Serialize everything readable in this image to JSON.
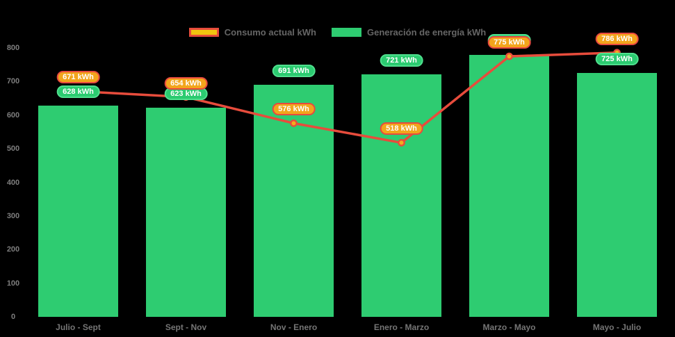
{
  "chart": {
    "background": "#000000",
    "legend": {
      "items": [
        {
          "label": "Consumo actual kWh",
          "swatch_fill": "#F1C40F",
          "swatch_border": "#E74C3C"
        },
        {
          "label": "Generación de energía kWh",
          "swatch_fill": "#2ECC71",
          "swatch_border": "#2ECC71"
        }
      ]
    }
  },
  "chart_data": {
    "type": "bar",
    "subtype": "bars-with-line-overlay",
    "title": "",
    "categories": [
      "Julio - Sept",
      "Sept - Nov",
      "Nov - Enero",
      "Enero - Marzo",
      "Marzo - Mayo",
      "Mayo - Julio"
    ],
    "series": [
      {
        "name": "Generación de energía kWh",
        "type": "bar",
        "color": "#2ECC71",
        "values": [
          628,
          623,
          691,
          721,
          780,
          725
        ],
        "hidden_label_indexes": [
          4
        ]
      },
      {
        "name": "Consumo actual kWh",
        "type": "line",
        "color": "#E74C3C",
        "point_fill": "#F3AC1E",
        "values": [
          671,
          654,
          576,
          518,
          775,
          786
        ]
      }
    ],
    "value_suffix": " kWh",
    "ylim": [
      0,
      800
    ],
    "ytick_step": 100,
    "grid": false,
    "legend_position": "top-center",
    "badge_colors": {
      "generation_fill": "#2BCB70",
      "generation_border": "#4FE08E",
      "consumption_fill": "#F2A51C",
      "consumption_border": "#E8493F",
      "text": "#FFFFFF"
    },
    "axis_text_color": "#7E7E7E"
  }
}
